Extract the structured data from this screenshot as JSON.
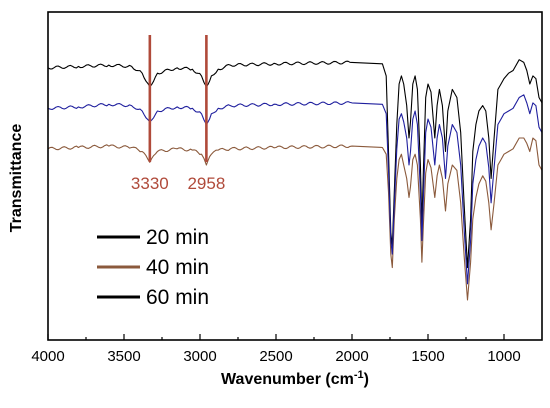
{
  "chart_data": {
    "type": "line",
    "title": "",
    "xlabel": "Wavenumber (cm",
    "xlabel_sup": "-1",
    "xlabel_end": ")",
    "ylabel": "Transmittance",
    "xlim": [
      4000,
      750
    ],
    "x_reversed": true,
    "x_ticks": [
      4000,
      3500,
      3000,
      2500,
      2000,
      1500,
      1000
    ],
    "y_ticks": [],
    "grid": false,
    "legend_position": "bottom-left",
    "annotations": [
      {
        "label": "3330",
        "x": 3330,
        "color": "#b04a3a"
      },
      {
        "label": "2958",
        "x": 2958,
        "color": "#b04a3a"
      }
    ],
    "series": [
      {
        "name": "20 min",
        "color": "#000000",
        "legend_color": "#000000",
        "baseline": 0.87,
        "points": [
          [
            4000,
            0.86
          ],
          [
            3800,
            0.865
          ],
          [
            3600,
            0.87
          ],
          [
            3450,
            0.865
          ],
          [
            3380,
            0.84
          ],
          [
            3330,
            0.79
          ],
          [
            3280,
            0.84
          ],
          [
            3150,
            0.86
          ],
          [
            3050,
            0.855
          ],
          [
            2990,
            0.83
          ],
          [
            2958,
            0.79
          ],
          [
            2925,
            0.83
          ],
          [
            2880,
            0.855
          ],
          [
            2800,
            0.87
          ],
          [
            2500,
            0.875
          ],
          [
            2000,
            0.88
          ],
          [
            1800,
            0.875
          ],
          [
            1775,
            0.83
          ],
          [
            1760,
            0.55
          ],
          [
            1745,
            0.25
          ],
          [
            1735,
            0.2
          ],
          [
            1722,
            0.4
          ],
          [
            1705,
            0.65
          ],
          [
            1690,
            0.8
          ],
          [
            1675,
            0.83
          ],
          [
            1660,
            0.8
          ],
          [
            1640,
            0.72
          ],
          [
            1625,
            0.6
          ],
          [
            1615,
            0.66
          ],
          [
            1600,
            0.8
          ],
          [
            1585,
            0.83
          ],
          [
            1570,
            0.78
          ],
          [
            1550,
            0.5
          ],
          [
            1540,
            0.28
          ],
          [
            1530,
            0.48
          ],
          [
            1515,
            0.75
          ],
          [
            1500,
            0.8
          ],
          [
            1480,
            0.77
          ],
          [
            1455,
            0.6
          ],
          [
            1440,
            0.72
          ],
          [
            1425,
            0.78
          ],
          [
            1405,
            0.72
          ],
          [
            1385,
            0.55
          ],
          [
            1370,
            0.7
          ],
          [
            1340,
            0.78
          ],
          [
            1310,
            0.75
          ],
          [
            1285,
            0.62
          ],
          [
            1262,
            0.35
          ],
          [
            1240,
            0.12
          ],
          [
            1220,
            0.3
          ],
          [
            1205,
            0.55
          ],
          [
            1185,
            0.65
          ],
          [
            1165,
            0.7
          ],
          [
            1140,
            0.72
          ],
          [
            1120,
            0.7
          ],
          [
            1100,
            0.6
          ],
          [
            1085,
            0.45
          ],
          [
            1065,
            0.6
          ],
          [
            1040,
            0.78
          ],
          [
            1020,
            0.8
          ],
          [
            1000,
            0.82
          ],
          [
            970,
            0.84
          ],
          [
            940,
            0.85
          ],
          [
            900,
            0.89
          ],
          [
            870,
            0.88
          ],
          [
            850,
            0.85
          ],
          [
            830,
            0.8
          ],
          [
            810,
            0.83
          ],
          [
            790,
            0.82
          ],
          [
            770,
            0.75
          ],
          [
            750,
            0.73
          ]
        ]
      },
      {
        "name": "40 min",
        "color": "#8b5a3c",
        "legend_color": "#8b5a3c",
        "baseline": 0.56,
        "points": [
          [
            4000,
            0.56
          ],
          [
            3800,
            0.565
          ],
          [
            3600,
            0.57
          ],
          [
            3450,
            0.565
          ],
          [
            3380,
            0.55
          ],
          [
            3330,
            0.51
          ],
          [
            3280,
            0.55
          ],
          [
            3150,
            0.56
          ],
          [
            3050,
            0.555
          ],
          [
            2990,
            0.54
          ],
          [
            2958,
            0.5
          ],
          [
            2925,
            0.54
          ],
          [
            2880,
            0.555
          ],
          [
            2800,
            0.56
          ],
          [
            2500,
            0.565
          ],
          [
            2000,
            0.57
          ],
          [
            1800,
            0.565
          ],
          [
            1775,
            0.54
          ],
          [
            1760,
            0.4
          ],
          [
            1745,
            0.17
          ],
          [
            1735,
            0.12
          ],
          [
            1722,
            0.3
          ],
          [
            1705,
            0.45
          ],
          [
            1690,
            0.52
          ],
          [
            1675,
            0.54
          ],
          [
            1660,
            0.5
          ],
          [
            1640,
            0.45
          ],
          [
            1625,
            0.38
          ],
          [
            1615,
            0.42
          ],
          [
            1600,
            0.52
          ],
          [
            1585,
            0.54
          ],
          [
            1570,
            0.5
          ],
          [
            1550,
            0.3
          ],
          [
            1540,
            0.14
          ],
          [
            1530,
            0.28
          ],
          [
            1515,
            0.47
          ],
          [
            1500,
            0.52
          ],
          [
            1480,
            0.49
          ],
          [
            1455,
            0.38
          ],
          [
            1440,
            0.46
          ],
          [
            1425,
            0.5
          ],
          [
            1405,
            0.45
          ],
          [
            1385,
            0.33
          ],
          [
            1370,
            0.43
          ],
          [
            1340,
            0.5
          ],
          [
            1310,
            0.48
          ],
          [
            1285,
            0.36
          ],
          [
            1262,
            0.16
          ],
          [
            1240,
            0.0
          ],
          [
            1220,
            0.14
          ],
          [
            1205,
            0.3
          ],
          [
            1185,
            0.38
          ],
          [
            1165,
            0.43
          ],
          [
            1140,
            0.46
          ],
          [
            1120,
            0.44
          ],
          [
            1100,
            0.36
          ],
          [
            1085,
            0.26
          ],
          [
            1065,
            0.36
          ],
          [
            1040,
            0.5
          ],
          [
            1020,
            0.52
          ],
          [
            1000,
            0.54
          ],
          [
            970,
            0.55
          ],
          [
            940,
            0.56
          ],
          [
            900,
            0.6
          ],
          [
            870,
            0.6
          ],
          [
            850,
            0.58
          ],
          [
            830,
            0.55
          ],
          [
            810,
            0.6
          ],
          [
            790,
            0.59
          ],
          [
            770,
            0.5
          ],
          [
            750,
            0.48
          ]
        ]
      },
      {
        "name": "60 min",
        "color": "#1f1f9e",
        "legend_color": "#000000",
        "baseline": 0.71,
        "points": [
          [
            4000,
            0.71
          ],
          [
            3800,
            0.715
          ],
          [
            3600,
            0.725
          ],
          [
            3450,
            0.72
          ],
          [
            3380,
            0.7
          ],
          [
            3330,
            0.66
          ],
          [
            3280,
            0.7
          ],
          [
            3150,
            0.715
          ],
          [
            3050,
            0.71
          ],
          [
            2990,
            0.69
          ],
          [
            2958,
            0.65
          ],
          [
            2925,
            0.69
          ],
          [
            2880,
            0.71
          ],
          [
            2800,
            0.72
          ],
          [
            2500,
            0.725
          ],
          [
            2000,
            0.73
          ],
          [
            1800,
            0.725
          ],
          [
            1775,
            0.69
          ],
          [
            1760,
            0.48
          ],
          [
            1745,
            0.22
          ],
          [
            1735,
            0.17
          ],
          [
            1722,
            0.35
          ],
          [
            1705,
            0.56
          ],
          [
            1690,
            0.67
          ],
          [
            1675,
            0.69
          ],
          [
            1660,
            0.66
          ],
          [
            1640,
            0.6
          ],
          [
            1625,
            0.5
          ],
          [
            1615,
            0.55
          ],
          [
            1600,
            0.67
          ],
          [
            1585,
            0.7
          ],
          [
            1570,
            0.65
          ],
          [
            1550,
            0.4
          ],
          [
            1540,
            0.22
          ],
          [
            1530,
            0.38
          ],
          [
            1515,
            0.62
          ],
          [
            1500,
            0.67
          ],
          [
            1480,
            0.64
          ],
          [
            1455,
            0.5
          ],
          [
            1440,
            0.6
          ],
          [
            1425,
            0.65
          ],
          [
            1405,
            0.6
          ],
          [
            1385,
            0.45
          ],
          [
            1370,
            0.57
          ],
          [
            1340,
            0.65
          ],
          [
            1310,
            0.62
          ],
          [
            1285,
            0.5
          ],
          [
            1262,
            0.26
          ],
          [
            1240,
            0.06
          ],
          [
            1220,
            0.22
          ],
          [
            1205,
            0.43
          ],
          [
            1185,
            0.52
          ],
          [
            1165,
            0.57
          ],
          [
            1140,
            0.6
          ],
          [
            1120,
            0.58
          ],
          [
            1100,
            0.49
          ],
          [
            1085,
            0.36
          ],
          [
            1065,
            0.49
          ],
          [
            1040,
            0.65
          ],
          [
            1020,
            0.67
          ],
          [
            1000,
            0.69
          ],
          [
            970,
            0.7
          ],
          [
            940,
            0.71
          ],
          [
            900,
            0.75
          ],
          [
            870,
            0.76
          ],
          [
            850,
            0.73
          ],
          [
            830,
            0.69
          ],
          [
            810,
            0.73
          ],
          [
            790,
            0.72
          ],
          [
            770,
            0.64
          ],
          [
            750,
            0.62
          ]
        ]
      }
    ]
  }
}
